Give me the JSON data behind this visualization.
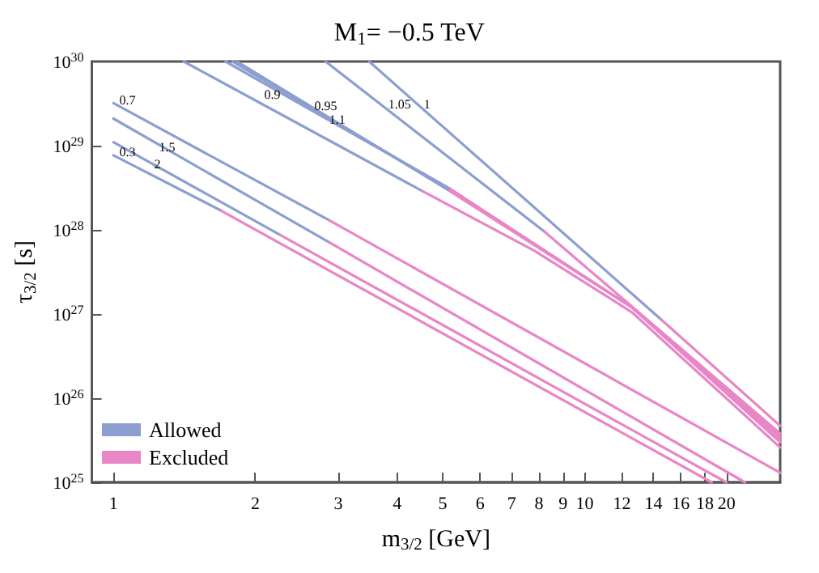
{
  "chart_data": {
    "type": "line",
    "title": "M$_{1}$= −0.5 TeV",
    "xlabel": "m$_{3/2}$ [GeV]",
    "ylabel": "τ$_{3/2}$ [s]",
    "log": "xy",
    "grid": false,
    "legend": "bottom left",
    "marker": "none",
    "line_style": "solid",
    "xlim": [
      0.9,
      26
    ],
    "ylim": [
      1e+25,
      1e+30
    ],
    "xticks": [
      1,
      2,
      3,
      4,
      5,
      6,
      7,
      8,
      9,
      10,
      12,
      14,
      16,
      18,
      20
    ],
    "yticks": [
      {
        "value": 1e+25,
        "label": "10$^{25}$"
      },
      {
        "value": 1e+26,
        "label": "10$^{26}$"
      },
      {
        "value": 1e+27,
        "label": "10$^{27}$"
      },
      {
        "value": 1e+28,
        "label": "10$^{28}$"
      },
      {
        "value": 1e+29,
        "label": "10$^{29}$"
      },
      {
        "value": 1e+30,
        "label": "10$^{30}$"
      }
    ],
    "series": [
      {
        "name": "Allowed",
        "color": "#8c9fd0",
        "x": [
          1,
          2.87
        ],
        "values": [
          3.2e+29,
          1.3e+28
        ]
      },
      {
        "name": "Excluded",
        "color": "#e886c6",
        "x": [
          2.87,
          26
        ],
        "values": [
          1.3e+28,
          1.3e+25
        ]
      },
      {
        "color": "#8c9fd0",
        "x": [
          1,
          2.87
        ],
        "values": [
          2.1e+29,
          7.1e+27
        ]
      },
      {
        "color": "#e886c6",
        "x": [
          2.87,
          21.9
        ],
        "values": [
          7.1e+27,
          1e+25
        ]
      },
      {
        "color": "#8c9fd0",
        "x": [
          1,
          2.26
        ],
        "values": [
          1.1e+29,
          8.7e+27
        ]
      },
      {
        "color": "#e886c6",
        "x": [
          2.26,
          20
        ],
        "values": [
          8.7e+27,
          1e+25
        ]
      },
      {
        "color": "#8c9fd0",
        "x": [
          1,
          1.69
        ],
        "values": [
          7.7e+28,
          1.7e+28
        ]
      },
      {
        "color": "#e886c6",
        "x": [
          1.69,
          18.6
        ],
        "values": [
          1.7e+28,
          1e+25
        ]
      },
      {
        "color": "#8c9fd0",
        "x": [
          3.49,
          14.5
        ],
        "values": [
          1e+30,
          8.7e+26
        ]
      },
      {
        "color": "#e886c6",
        "x": [
          14.5,
          26
        ],
        "values": [
          8.7e+26,
          4.7e+25
        ]
      },
      {
        "color": "#8c9fd0",
        "x": [
          2.82,
          8.22
        ],
        "values": [
          1e+30,
          9.5e+27
        ]
      },
      {
        "color": "#e886c6",
        "x": [
          8.22,
          26
        ],
        "values": [
          9.5e+27,
          3.8e+25
        ]
      },
      {
        "color": "#8c9fd0",
        "x": [
          1.41,
          4.52
        ],
        "values": [
          1e+30,
          2.9e+28
        ]
      },
      {
        "color": "#e886c6",
        "x": [
          4.52,
          7.84,
          12.6,
          26
        ],
        "values": [
          2.9e+28,
          5.6e+27,
          1.05e+27,
          2.6e+25
        ]
      },
      {
        "color": "#8c9fd0",
        "x": [
          1.73,
          5.17
        ],
        "values": [
          1e+30,
          3.1e+28
        ]
      },
      {
        "color": "#e886c6",
        "x": [
          5.17,
          12.6,
          26
        ],
        "values": [
          3.1e+28,
          1.2e+27,
          3.5e+25
        ]
      },
      {
        "color": "#8c9fd0",
        "x": [
          1.79,
          5.17
        ],
        "values": [
          1e+30,
          3e+28
        ]
      },
      {
        "color": "#e886c6",
        "x": [
          5.17,
          12.6,
          26
        ],
        "values": [
          3e+28,
          1.2e+27,
          3.2e+25
        ]
      },
      {
        "color": "#8c9fd0",
        "x": [
          1.83,
          5.17
        ],
        "values": [
          1e+30,
          2.9e+28
        ]
      },
      {
        "color": "#e886c6",
        "x": [
          5.17,
          12.6,
          26
        ],
        "values": [
          2.9e+28,
          1.2e+27,
          3e+25
        ]
      }
    ],
    "annotations": [
      {
        "text": "0.7",
        "x": 1.03,
        "y": 2.9e+29
      },
      {
        "text": "1.5",
        "x": 1.25,
        "y": 8.1e+28
      },
      {
        "text": "0.3",
        "x": 1.03,
        "y": 7e+28
      },
      {
        "text": "2",
        "x": 1.22,
        "y": 5e+28
      },
      {
        "text": "0.9",
        "x": 2.09,
        "y": 3.4e+29
      },
      {
        "text": "0.95",
        "x": 2.67,
        "y": 2.5e+29
      },
      {
        "text": "1.1",
        "x": 2.87,
        "y": 1.7e+29
      },
      {
        "text": "1.05",
        "x": 3.83,
        "y": 2.6e+29
      },
      {
        "text": "1",
        "x": 4.56,
        "y": 2.6e+29
      }
    ]
  }
}
